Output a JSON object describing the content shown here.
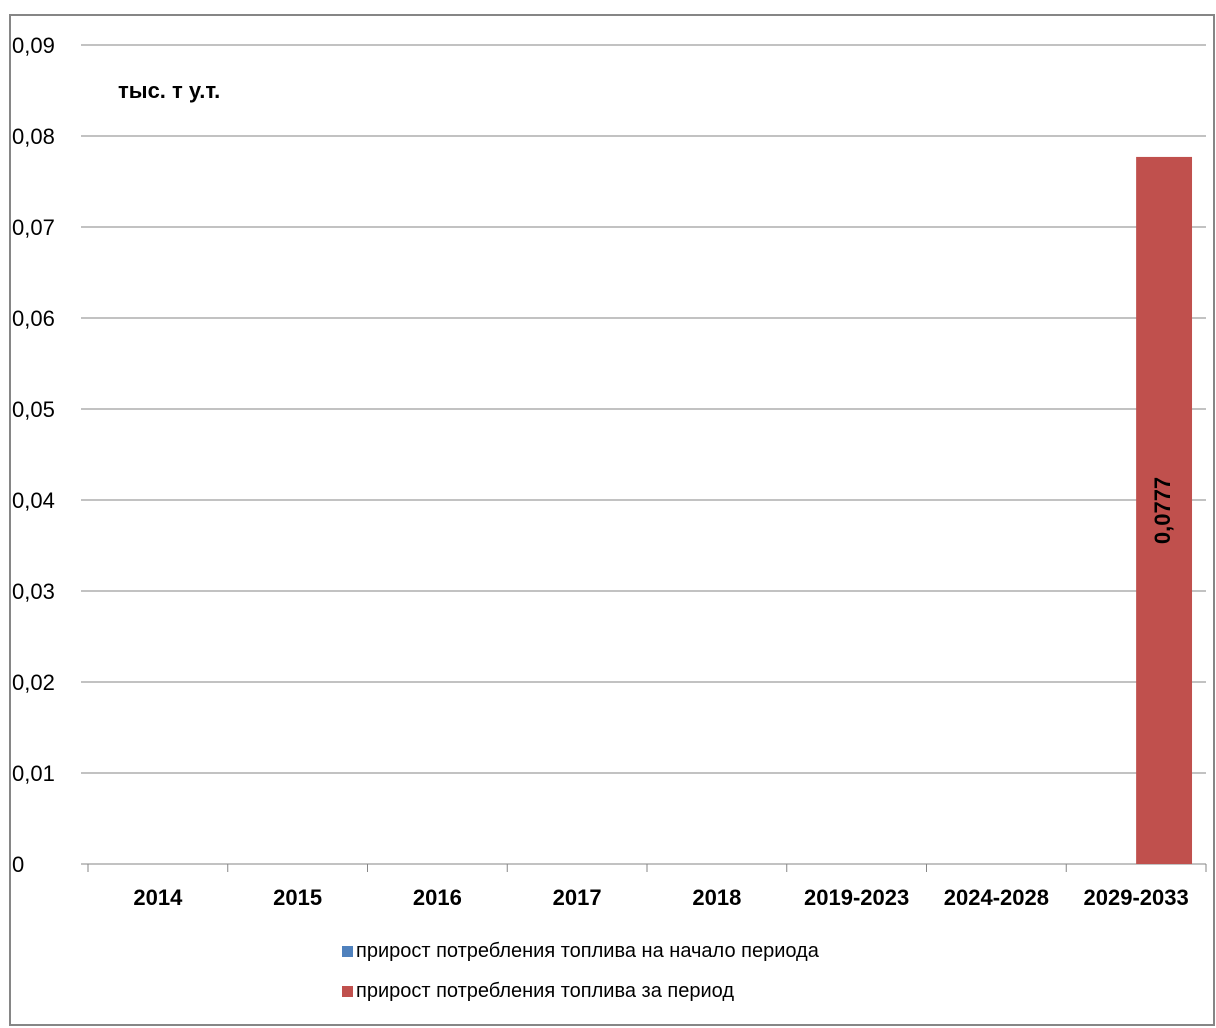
{
  "chart_data": {
    "type": "bar",
    "unit_label": "тыс. т у.т.",
    "categories": [
      "2014",
      "2015",
      "2016",
      "2017",
      "2018",
      "2019-2023",
      "2024-2028",
      "2029-2033"
    ],
    "series": [
      {
        "name": "прирост потребления топлива  на начало периода",
        "color": "#4f81bd",
        "values": [
          0,
          0,
          0,
          0,
          0,
          0,
          0,
          0
        ]
      },
      {
        "name": "прирост потребления топлива  за период",
        "color": "#c0504d",
        "values": [
          0,
          0,
          0,
          0,
          0,
          0,
          0,
          0.0777
        ]
      }
    ],
    "data_labels": [
      {
        "category": "2029-2033",
        "series": 1,
        "text": "0,0777"
      }
    ],
    "ylim": [
      0,
      0.09
    ],
    "y_ticks": [
      "0",
      "0,01",
      "0,02",
      "0,03",
      "0,04",
      "0,05",
      "0,06",
      "0,07",
      "0,08",
      "0,09"
    ],
    "y_tick_values": [
      0,
      0.01,
      0.02,
      0.03,
      0.04,
      0.05,
      0.06,
      0.07,
      0.08,
      0.09
    ],
    "grid": true,
    "legend_position": "bottom"
  }
}
